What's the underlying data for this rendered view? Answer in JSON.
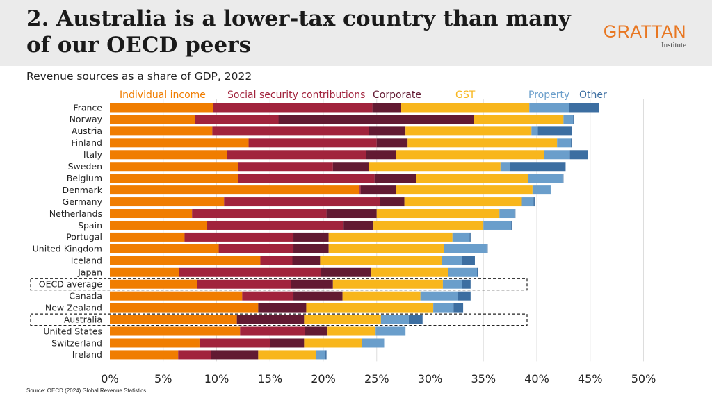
{
  "title": "2. Australia is a lower-tax country than many of our OECD peers",
  "logo": {
    "main": "GRATTAN",
    "sub": "Institute"
  },
  "source": "Source: OECD (2024) Global Revenue Statistics.",
  "colors": {
    "Individual income": "#f07d00",
    "Social security contributions": "#a1233c",
    "Corporate": "#621a32",
    "GST": "#f8b61c",
    "Property": "#6a9ecb",
    "Other": "#3c6ea1",
    "grid": "#dddddd",
    "highlight_box": "#222222"
  },
  "chart_data": {
    "type": "bar",
    "orientation": "horizontal",
    "stacked": true,
    "title": "Revenue sources as a share of GDP, 2022",
    "xlabel": "",
    "ylabel": "",
    "xlim": [
      0,
      50
    ],
    "x_ticks": [
      0,
      5,
      10,
      15,
      20,
      25,
      30,
      35,
      40,
      45,
      50
    ],
    "x_tick_labels": [
      "0%",
      "5%",
      "10%",
      "15%",
      "20%",
      "25%",
      "30%",
      "35%",
      "40%",
      "45%",
      "50%"
    ],
    "legend_position": "top",
    "highlighted_categories": [
      "OECD average",
      "Australia"
    ],
    "categories": [
      "France",
      "Norway",
      "Austria",
      "Finland",
      "Italy",
      "Sweden",
      "Belgium",
      "Denmark",
      "Germany",
      "Netherlands",
      "Spain",
      "Portugal",
      "United Kingdom",
      "Iceland",
      "Japan",
      "OECD average",
      "Canada",
      "New Zealand",
      "Australia",
      "United States",
      "Switzerland",
      "Ireland"
    ],
    "series": [
      {
        "name": "Individual income",
        "values": [
          9.7,
          8.0,
          9.6,
          13.0,
          11.0,
          12.0,
          12.0,
          23.4,
          10.7,
          7.7,
          9.1,
          7.0,
          10.2,
          14.1,
          6.5,
          8.2,
          12.4,
          13.9,
          11.9,
          12.2,
          8.4,
          6.4
        ]
      },
      {
        "name": "Social security contributions",
        "values": [
          14.9,
          7.8,
          14.7,
          12.0,
          13.0,
          8.9,
          12.8,
          0.1,
          14.6,
          12.6,
          12.8,
          10.2,
          7.0,
          3.0,
          13.3,
          8.8,
          4.8,
          0.0,
          0.0,
          6.1,
          6.6,
          3.1
        ]
      },
      {
        "name": "Corporate",
        "values": [
          2.7,
          18.3,
          3.4,
          2.9,
          2.8,
          3.4,
          3.9,
          3.3,
          2.3,
          4.7,
          2.8,
          3.3,
          3.3,
          2.6,
          4.7,
          3.9,
          4.6,
          4.5,
          6.3,
          2.1,
          3.2,
          4.4
        ]
      },
      {
        "name": "GST",
        "values": [
          12.0,
          8.4,
          11.8,
          14.0,
          13.9,
          12.3,
          10.5,
          12.8,
          11.0,
          11.5,
          10.3,
          11.6,
          10.8,
          11.4,
          7.2,
          10.3,
          7.3,
          11.9,
          7.2,
          4.5,
          5.4,
          5.4
        ]
      },
      {
        "name": "Property",
        "values": [
          3.7,
          0.9,
          0.6,
          1.3,
          2.4,
          0.9,
          3.2,
          1.7,
          1.1,
          1.4,
          2.6,
          1.6,
          4.0,
          1.9,
          2.7,
          1.8,
          3.5,
          1.9,
          2.6,
          2.8,
          2.1,
          0.9
        ]
      },
      {
        "name": "Other",
        "values": [
          2.8,
          0.1,
          3.2,
          0.1,
          1.7,
          5.2,
          0.1,
          0.0,
          0.1,
          0.1,
          0.1,
          0.1,
          0.1,
          1.2,
          0.1,
          0.8,
          1.2,
          0.9,
          1.3,
          0.0,
          0.0,
          0.1
        ]
      }
    ]
  }
}
